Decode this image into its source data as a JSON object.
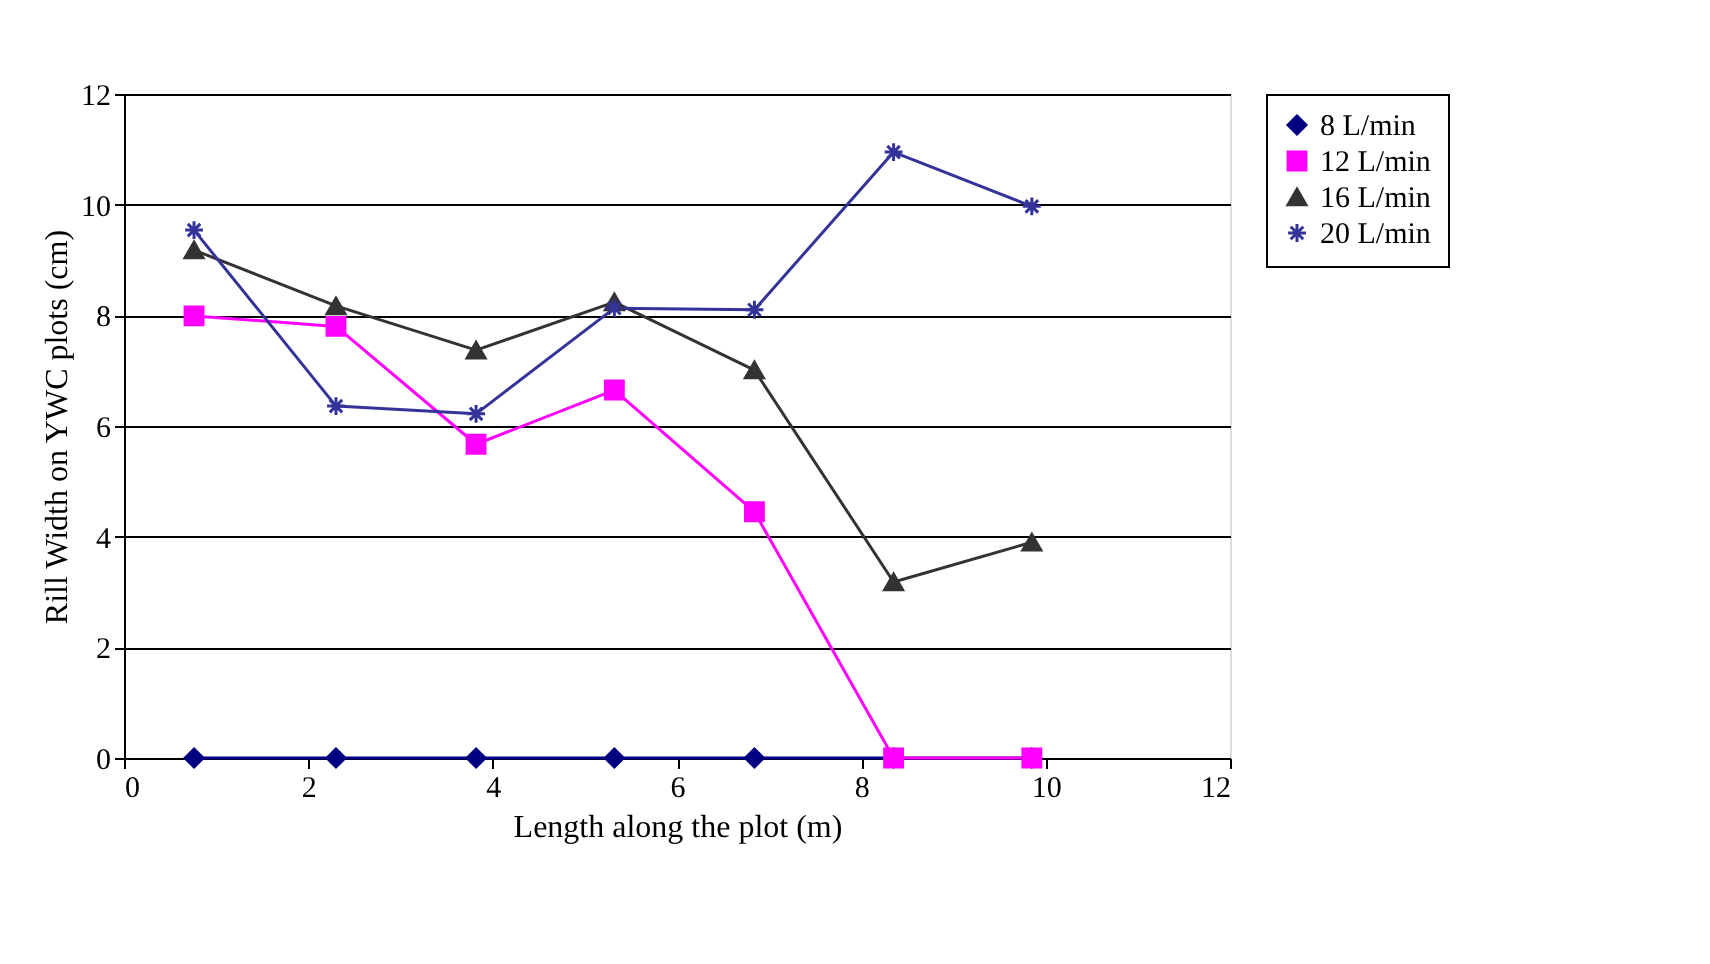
{
  "chart_data": {
    "type": "line",
    "xlabel": "Length along the plot (m)",
    "ylabel": "Rill Width on YWC plots (cm)",
    "x": [
      0.76,
      2.3,
      3.82,
      5.32,
      6.84,
      8.35,
      9.85
    ],
    "series": [
      {
        "name": "8 L/min",
        "color": "#000080",
        "marker": "diamond",
        "values": [
          0,
          0,
          0,
          0,
          0,
          0,
          0
        ]
      },
      {
        "name": "12 L/min",
        "color": "#ff00ff",
        "marker": "square",
        "values": [
          7.99,
          7.8,
          5.67,
          6.65,
          4.45,
          0,
          0
        ]
      },
      {
        "name": "16 L/min",
        "color": "#333333",
        "marker": "triangle",
        "values": [
          9.18,
          8.17,
          7.37,
          8.24,
          7.01,
          3.18,
          3.9
        ]
      },
      {
        "name": "20 L/min",
        "color": "#333399",
        "marker": "cross",
        "values": [
          9.54,
          6.36,
          6.22,
          8.13,
          8.1,
          10.95,
          9.97
        ]
      }
    ],
    "xlim": [
      0,
      12
    ],
    "xticks": [
      0,
      2,
      4,
      6,
      8,
      10,
      12
    ],
    "ylim": [
      0,
      12
    ],
    "yticks": [
      0,
      2,
      4,
      6,
      8,
      10,
      12
    ],
    "grid": "y",
    "legend": "right",
    "line_style": "solid"
  }
}
